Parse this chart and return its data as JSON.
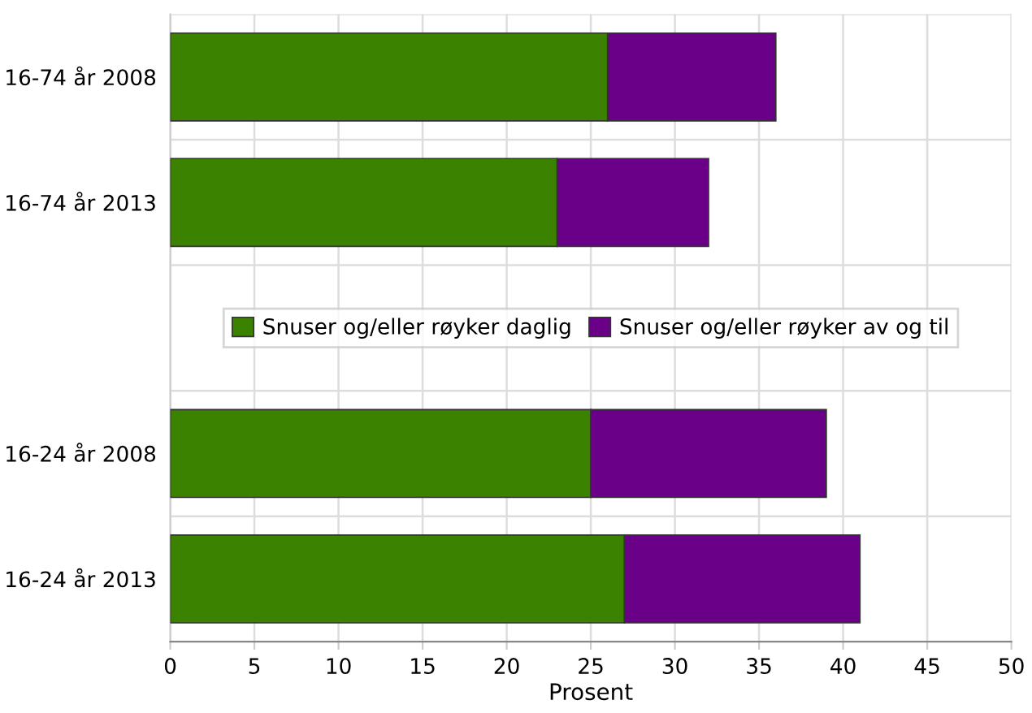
{
  "chart_data": {
    "type": "bar",
    "orientation": "horizontal",
    "stacked": true,
    "xlabel": "Prosent",
    "categories": [
      "16-74 år 2008",
      "16-74 år 2013",
      null,
      "16-24 år 2008",
      "16-24 år 2013"
    ],
    "series": [
      {
        "name": "Snuser og/eller røyker daglig",
        "color": "#3a8200",
        "values": [
          26,
          23,
          null,
          25,
          27
        ]
      },
      {
        "name": "Snuser og/eller røyker av og til",
        "color": "#6a0088",
        "values": [
          10,
          9,
          null,
          14,
          14
        ]
      }
    ],
    "xlim": [
      0,
      50
    ],
    "xticks": [
      0,
      5,
      10,
      15,
      20,
      25,
      30,
      35,
      40,
      45,
      50
    ],
    "grid": true,
    "legend": "center"
  }
}
